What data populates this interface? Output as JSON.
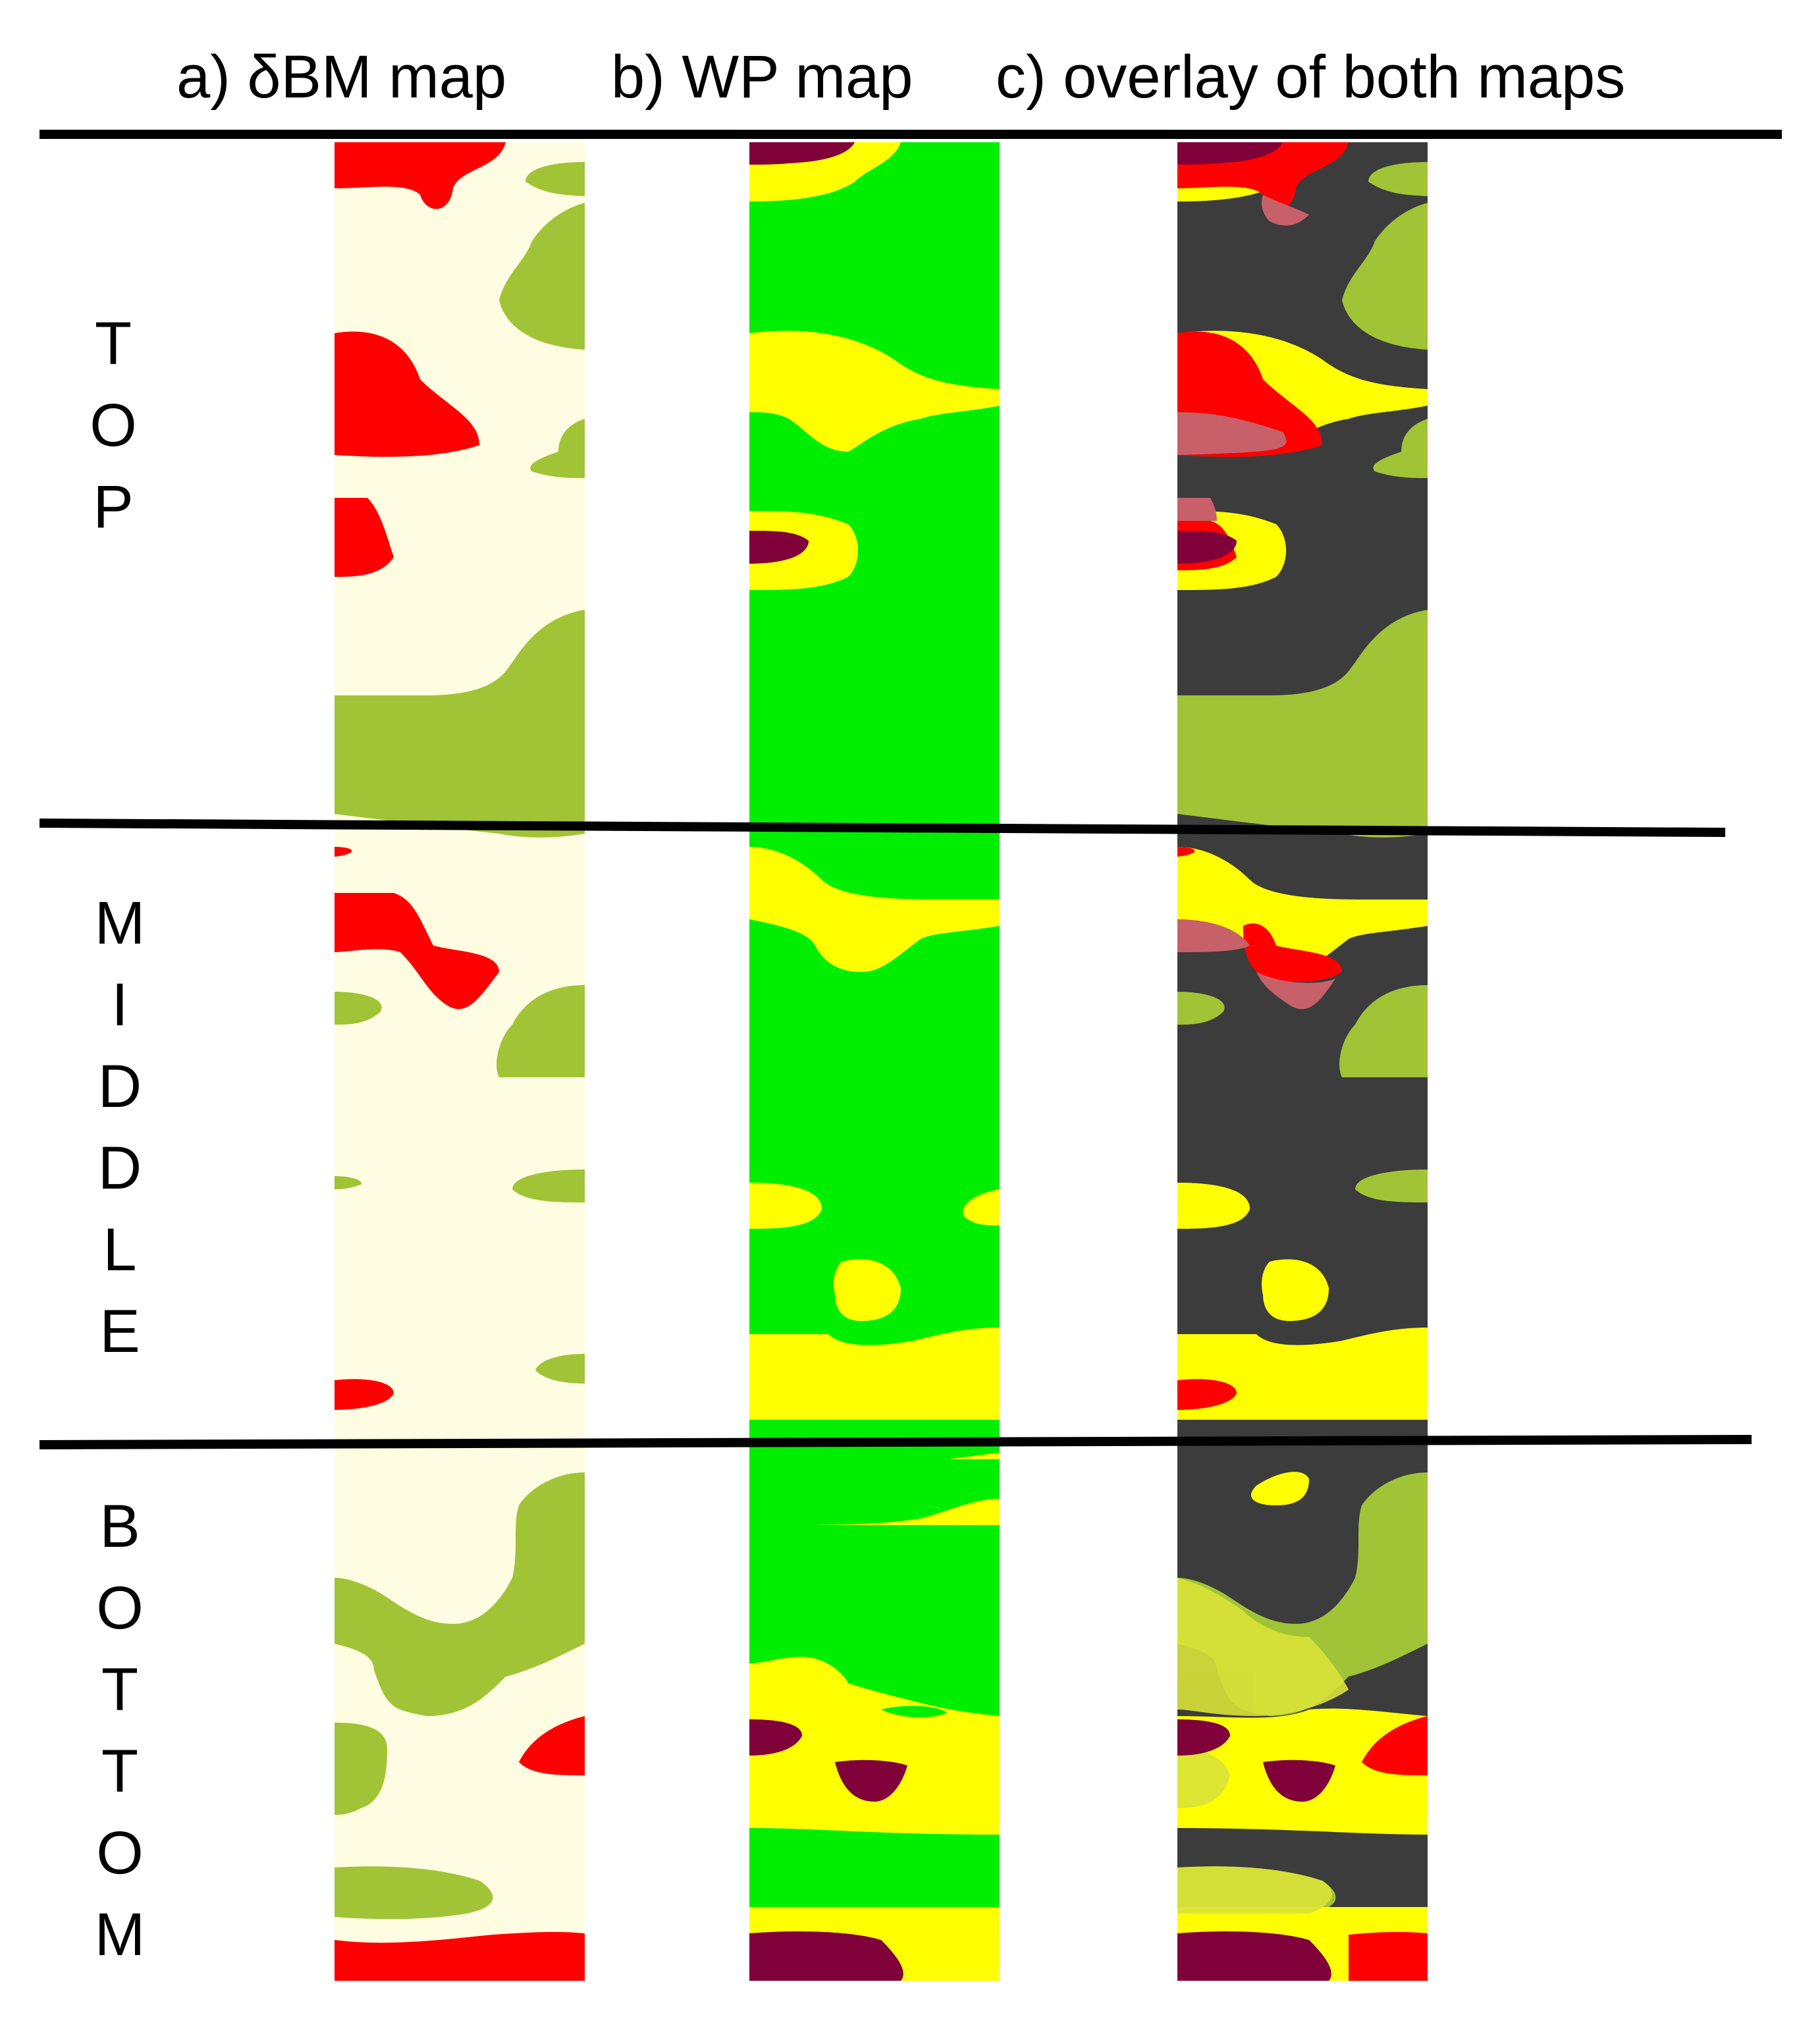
{
  "columns": [
    {
      "label": "a) δBM map"
    },
    {
      "label": "b) WP map"
    },
    {
      "label": "c) overlay of both maps"
    }
  ],
  "sections": [
    {
      "label": "TOP",
      "letters": [
        "T",
        "O",
        "P"
      ]
    },
    {
      "label": "MIDDLE",
      "letters": [
        "M",
        "I",
        "D",
        "D",
        "L",
        "E"
      ]
    },
    {
      "label": "BOTTOM",
      "letters": [
        "B",
        "O",
        "T",
        "T",
        "O",
        "M"
      ]
    }
  ],
  "colors": {
    "dbm_background": "#fefde2",
    "dbm_positive": "#ff0000",
    "dbm_negative": "#a0c435",
    "wp_background": "#00ee00",
    "wp_mid": "#ffff00",
    "wp_high": "#80003a",
    "overlay_background": "#3c3c3c",
    "overlay_blend": "#c8606a",
    "divider": "#000000"
  }
}
